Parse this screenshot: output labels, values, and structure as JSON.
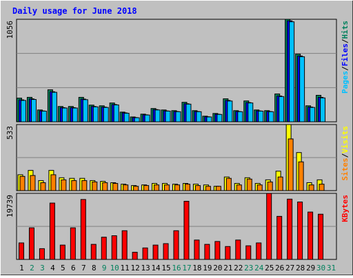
{
  "title": "Daily usage for June 2018",
  "legend_separator": "/",
  "chart_data": [
    {
      "type": "bar",
      "ylim": [
        0,
        1056
      ],
      "yticks": [
        1056
      ],
      "series": [
        {
          "name": "Hits",
          "color": "#00805c",
          "values": [
            244,
            252,
            122,
            330,
            158,
            158,
            252,
            172,
            165,
            194,
            100,
            50,
            79,
            137,
            122,
            115,
            201,
            115,
            58,
            86,
            237,
            115,
            215,
            122,
            115,
            287,
            1056,
            697,
            165,
            273,
            null
          ]
        },
        {
          "name": "Files",
          "color": "#0000ff",
          "values": [
            226,
            236,
            112,
            310,
            146,
            146,
            234,
            158,
            152,
            178,
            92,
            44,
            72,
            126,
            112,
            106,
            186,
            106,
            52,
            78,
            220,
            106,
            198,
            112,
            106,
            266,
            1040,
            678,
            152,
            252,
            null
          ]
        },
        {
          "name": "Pages",
          "color": "#00c0ff",
          "values": [
            220,
            230,
            110,
            304,
            142,
            142,
            228,
            154,
            148,
            174,
            88,
            42,
            70,
            122,
            110,
            104,
            182,
            104,
            50,
            76,
            214,
            104,
            194,
            110,
            104,
            260,
            1030,
            670,
            148,
            246,
            null
          ]
        }
      ]
    },
    {
      "type": "bar",
      "ylim": [
        0,
        533
      ],
      "yticks": [
        533
      ],
      "series": [
        {
          "name": "Visits",
          "color": "#ffff00",
          "values": [
            128,
            163,
            81,
            163,
            104,
            99,
            99,
            81,
            75,
            64,
            52,
            41,
            46,
            58,
            58,
            52,
            58,
            52,
            46,
            35,
            110,
            58,
            104,
            58,
            87,
            157,
            533,
            307,
            64,
            87,
            null
          ]
        },
        {
          "name": "Sites",
          "color": "#ff8000",
          "values": [
            115,
            122,
            64,
            128,
            87,
            81,
            81,
            70,
            64,
            58,
            46,
            35,
            41,
            46,
            46,
            46,
            52,
            41,
            35,
            35,
            99,
            46,
            93,
            46,
            70,
            110,
            417,
            232,
            46,
            52,
            null
          ]
        }
      ]
    },
    {
      "type": "bar",
      "ylim": [
        0,
        19739
      ],
      "yticks": [
        19739
      ],
      "categories": [
        "1",
        "2",
        "3",
        "4",
        "5",
        "6",
        "7",
        "8",
        "9",
        "10",
        "11",
        "12",
        "13",
        "14",
        "15",
        "16",
        "17",
        "18",
        "19",
        "20",
        "21",
        "22",
        "23",
        "24",
        "25",
        "26",
        "27",
        "28",
        "29",
        "30",
        "31"
      ],
      "category_colors": [
        "#000000",
        "#00805c",
        "#00805c",
        "#000000",
        "#000000",
        "#000000",
        "#000000",
        "#000000",
        "#00805c",
        "#00805c",
        "#000000",
        "#000000",
        "#000000",
        "#000000",
        "#000000",
        "#00805c",
        "#00805c",
        "#000000",
        "#000000",
        "#000000",
        "#000000",
        "#000000",
        "#00805c",
        "#00805c",
        "#000000",
        "#000000",
        "#000000",
        "#000000",
        "#000000",
        "#00805c",
        "#00805c"
      ],
      "series": [
        {
          "name": "KBytes",
          "color": "#ff0000",
          "values": [
            4935,
            9440,
            3218,
            16842,
            4290,
            9440,
            17913,
            4505,
            6650,
            7080,
            8582,
            2145,
            3433,
            4290,
            4720,
            8582,
            17378,
            5793,
            4505,
            5364,
            3862,
            5793,
            4076,
            4935,
            19739,
            12873,
            18020,
            17164,
            14160,
            13517,
            null
          ]
        }
      ]
    }
  ]
}
